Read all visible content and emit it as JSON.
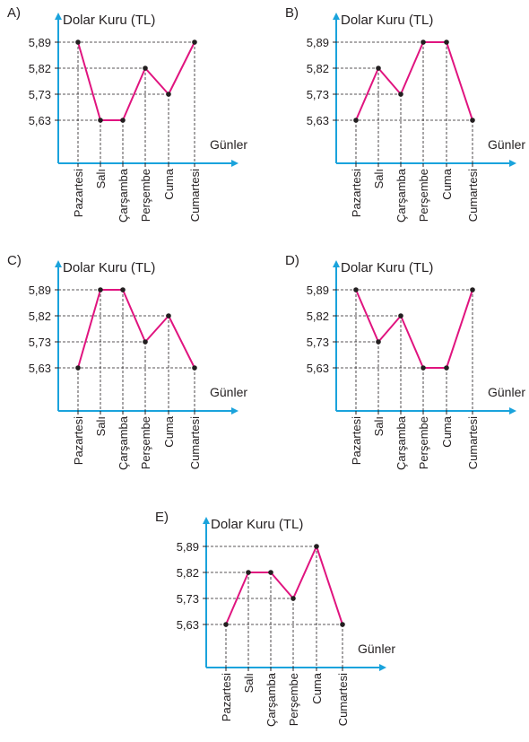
{
  "chart_data": [
    {
      "type": "line",
      "label": "A)",
      "title": "Dolar Kuru (TL)",
      "xlabel": "Günler",
      "categories": [
        "Pazartesi",
        "Salı",
        "Çarşamba",
        "Perşembe",
        "Cuma",
        "Cumartesi"
      ],
      "yticks": [
        "5,63",
        "5,73",
        "5,82",
        "5,89"
      ],
      "values": [
        5.89,
        5.63,
        5.63,
        5.82,
        5.73,
        5.89
      ],
      "line_color": "#e0147f",
      "axis_color": "#1aa3dc"
    },
    {
      "type": "line",
      "label": "B)",
      "title": "Dolar Kuru (TL)",
      "xlabel": "Günler",
      "categories": [
        "Pazartesi",
        "Salı",
        "Çarşamba",
        "Perşembe",
        "Cuma",
        "Cumartesi"
      ],
      "yticks": [
        "5,63",
        "5,73",
        "5,82",
        "5,89"
      ],
      "values": [
        5.63,
        5.82,
        5.73,
        5.89,
        5.89,
        5.63
      ],
      "line_color": "#e0147f",
      "axis_color": "#1aa3dc"
    },
    {
      "type": "line",
      "label": "C)",
      "title": "Dolar Kuru (TL)",
      "xlabel": "Günler",
      "categories": [
        "Pazartesi",
        "Salı",
        "Çarşamba",
        "Perşembe",
        "Cuma",
        "Cumartesi"
      ],
      "yticks": [
        "5,63",
        "5,73",
        "5,82",
        "5,89"
      ],
      "values": [
        5.63,
        5.89,
        5.89,
        5.73,
        5.82,
        5.63
      ],
      "line_color": "#e0147f",
      "axis_color": "#1aa3dc"
    },
    {
      "type": "line",
      "label": "D)",
      "title": "Dolar Kuru (TL)",
      "xlabel": "Günler",
      "categories": [
        "Pazartesi",
        "Salı",
        "Çarşamba",
        "Perşembe",
        "Cuma",
        "Cumartesi"
      ],
      "yticks": [
        "5,63",
        "5,73",
        "5,82",
        "5,89"
      ],
      "values": [
        5.89,
        5.73,
        5.82,
        5.63,
        5.63,
        5.89
      ],
      "line_color": "#e0147f",
      "axis_color": "#1aa3dc"
    },
    {
      "type": "line",
      "label": "E)",
      "title": "Dolar Kuru (TL)",
      "xlabel": "Günler",
      "categories": [
        "Pazartesi",
        "Salı",
        "Çarşamba",
        "Perşembe",
        "Cuma",
        "Cumartesi"
      ],
      "yticks": [
        "5,63",
        "5,73",
        "5,82",
        "5,89"
      ],
      "values": [
        5.63,
        5.82,
        5.82,
        5.73,
        5.89,
        5.63
      ],
      "line_color": "#e0147f",
      "axis_color": "#1aa3dc"
    }
  ]
}
